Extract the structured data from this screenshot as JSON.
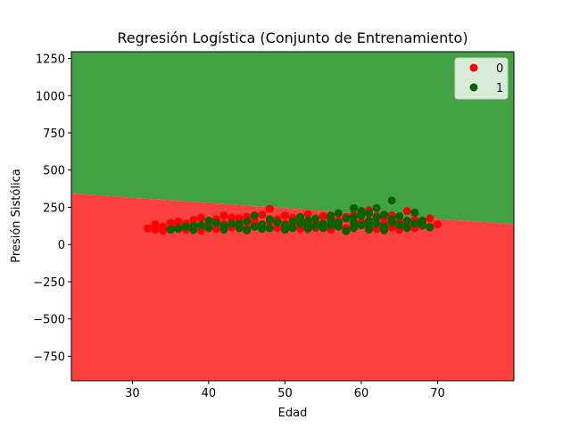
{
  "chart_data": {
    "type": "scatter",
    "title": "Regresión Logística (Conjunto de Entrenamiento)",
    "xlabel": "Edad",
    "ylabel": "Presión Sistólica",
    "xlim": [
      22,
      80
    ],
    "ylim": [
      -915,
      1295
    ],
    "xticks": [
      30,
      40,
      50,
      60,
      70
    ],
    "yticks": [
      -750,
      -500,
      -250,
      0,
      250,
      500,
      750,
      1000,
      1250
    ],
    "grid": false,
    "legend_position": "top-right",
    "regions": {
      "class_1_color": "#42a143",
      "class_0_color": "#fe4040",
      "boundary": [
        [
          22,
          343
        ],
        [
          80,
          137
        ]
      ]
    },
    "series": [
      {
        "name": "0",
        "color": "#ff0000",
        "points": [
          [
            32,
            108
          ],
          [
            33,
            135
          ],
          [
            33,
            100
          ],
          [
            34,
            120
          ],
          [
            34,
            92
          ],
          [
            35,
            145
          ],
          [
            35,
            110
          ],
          [
            36,
            155
          ],
          [
            36,
            125
          ],
          [
            37,
            100
          ],
          [
            37,
            140
          ],
          [
            38,
            165
          ],
          [
            38,
            118
          ],
          [
            39,
            180
          ],
          [
            39,
            95
          ],
          [
            40,
            150
          ],
          [
            40,
            128
          ],
          [
            41,
            170
          ],
          [
            41,
            105
          ],
          [
            42,
            195
          ],
          [
            42,
            138
          ],
          [
            43,
            115
          ],
          [
            43,
            180
          ],
          [
            44,
            175
          ],
          [
            44,
            130
          ],
          [
            45,
            185
          ],
          [
            45,
            110
          ],
          [
            46,
            145
          ],
          [
            46,
            160
          ],
          [
            47,
            200
          ],
          [
            47,
            125
          ],
          [
            48,
            240
          ],
          [
            48,
            150
          ],
          [
            49,
            170
          ],
          [
            49,
            112
          ],
          [
            50,
            195
          ],
          [
            50,
            140
          ],
          [
            51,
            120
          ],
          [
            51,
            180
          ],
          [
            52,
            165
          ],
          [
            52,
            105
          ],
          [
            53,
            205
          ],
          [
            53,
            135
          ],
          [
            54,
            150
          ],
          [
            54,
            112
          ],
          [
            55,
            190
          ],
          [
            55,
            125
          ],
          [
            56,
            175
          ],
          [
            56,
            100
          ],
          [
            57,
            160
          ],
          [
            57,
            145
          ],
          [
            58,
            185
          ],
          [
            58,
            110
          ],
          [
            59,
            200
          ],
          [
            59,
            130
          ],
          [
            60,
            210
          ],
          [
            60,
            150
          ],
          [
            61,
            230
          ],
          [
            61,
            120
          ],
          [
            62,
            190
          ],
          [
            62,
            105
          ],
          [
            63,
            175
          ],
          [
            63,
            140
          ],
          [
            64,
            195
          ],
          [
            64,
            115
          ],
          [
            65,
            150
          ],
          [
            65,
            100
          ],
          [
            66,
            225
          ],
          [
            66,
            130
          ],
          [
            67,
            165
          ],
          [
            67,
            110
          ],
          [
            68,
            140
          ],
          [
            68,
            125
          ],
          [
            69,
            175
          ],
          [
            69,
            120
          ],
          [
            70,
            135
          ]
        ]
      },
      {
        "name": "1",
        "color": "#006400",
        "points": [
          [
            35,
            100
          ],
          [
            36,
            105
          ],
          [
            37,
            120
          ],
          [
            38,
            98
          ],
          [
            39,
            130
          ],
          [
            40,
            110
          ],
          [
            41,
            145
          ],
          [
            42,
            100
          ],
          [
            42,
            125
          ],
          [
            43,
            140
          ],
          [
            44,
            110
          ],
          [
            45,
            155
          ],
          [
            45,
            95
          ],
          [
            46,
            120
          ],
          [
            46,
            195
          ],
          [
            47,
            135
          ],
          [
            48,
            110
          ],
          [
            48,
            170
          ],
          [
            49,
            150
          ],
          [
            50,
            100
          ],
          [
            50,
            130
          ],
          [
            51,
            155
          ],
          [
            51,
            110
          ],
          [
            52,
            140
          ],
          [
            52,
            185
          ],
          [
            53,
            105
          ],
          [
            53,
            160
          ],
          [
            54,
            125
          ],
          [
            54,
            175
          ],
          [
            55,
            140
          ],
          [
            55,
            110
          ],
          [
            56,
            165
          ],
          [
            56,
            195
          ],
          [
            57,
            120
          ],
          [
            57,
            210
          ],
          [
            57,
            145
          ],
          [
            58,
            90
          ],
          [
            58,
            175
          ],
          [
            59,
            245
          ],
          [
            59,
            150
          ],
          [
            59,
            110
          ],
          [
            60,
            195
          ],
          [
            60,
            130
          ],
          [
            60,
            225
          ],
          [
            61,
            160
          ],
          [
            61,
            100
          ],
          [
            61,
            210
          ],
          [
            62,
            245
          ],
          [
            62,
            140
          ],
          [
            62,
            180
          ],
          [
            63,
            120
          ],
          [
            63,
            200
          ],
          [
            63,
            95
          ],
          [
            64,
            295
          ],
          [
            64,
            150
          ],
          [
            64,
            170
          ],
          [
            65,
            130
          ],
          [
            65,
            190
          ],
          [
            66,
            160
          ],
          [
            66,
            110
          ],
          [
            67,
            215
          ],
          [
            67,
            140
          ],
          [
            68,
            130
          ],
          [
            68,
            160
          ],
          [
            69,
            115
          ],
          [
            61,
            135
          ],
          [
            59,
            185
          ],
          [
            56,
            130
          ],
          [
            53,
            120
          ],
          [
            47,
            105
          ],
          [
            44,
            140
          ],
          [
            40,
            160
          ],
          [
            38,
            125
          ]
        ]
      }
    ]
  }
}
